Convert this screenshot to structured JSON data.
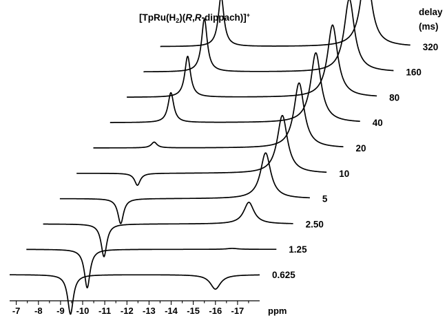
{
  "chart_data": {
    "type": "line",
    "title": "[TpRu(H2)(R,R-dippach)]+",
    "title_parts": {
      "pre": "[TpRu(H",
      "sub": "2",
      "mid": ")(",
      "italic": "R",
      "comma": ",",
      "italic2": "R",
      "post": "-dippach)]",
      "sup": "+"
    },
    "xlabel": "ppm",
    "x_reversed": true,
    "xlim": [
      -6.7,
      -18.0
    ],
    "xticks": [
      "-7",
      "-8",
      "-9",
      "-10",
      "-11",
      "-12",
      "-13",
      "-14",
      "-15",
      "-16",
      "-17"
    ],
    "legend_title": [
      "delay",
      "(ms)"
    ],
    "series": [
      {
        "name": "0.625",
        "delay_ms": 0.625,
        "peaks": [
          {
            "ppm": -9.45,
            "intensity": -0.82
          },
          {
            "ppm": -16.0,
            "intensity": -0.3
          }
        ]
      },
      {
        "name": "1.25",
        "delay_ms": 1.25,
        "peaks": [
          {
            "ppm": -9.45,
            "intensity": -0.8
          },
          {
            "ppm": -16.0,
            "intensity": 0.02
          }
        ]
      },
      {
        "name": "2.50",
        "delay_ms": 2.5,
        "peaks": [
          {
            "ppm": -9.45,
            "intensity": -0.68
          },
          {
            "ppm": -16.0,
            "intensity": 0.45
          }
        ]
      },
      {
        "name": "5",
        "delay_ms": 5,
        "peaks": [
          {
            "ppm": -9.45,
            "intensity": -0.52
          },
          {
            "ppm": -16.0,
            "intensity": 0.95
          }
        ]
      },
      {
        "name": "10",
        "delay_ms": 10,
        "peaks": [
          {
            "ppm": -9.45,
            "intensity": -0.25
          },
          {
            "ppm": -16.0,
            "intensity": 1.2
          }
        ]
      },
      {
        "name": "20",
        "delay_ms": 20,
        "peaks": [
          {
            "ppm": -9.45,
            "intensity": 0.12
          },
          {
            "ppm": -16.0,
            "intensity": 1.35
          }
        ]
      },
      {
        "name": "40",
        "delay_ms": 40,
        "peaks": [
          {
            "ppm": -9.45,
            "intensity": 0.62
          },
          {
            "ppm": -16.0,
            "intensity": 1.45
          }
        ]
      },
      {
        "name": "80",
        "delay_ms": 80,
        "peaks": [
          {
            "ppm": -9.45,
            "intensity": 0.85
          },
          {
            "ppm": -16.0,
            "intensity": 1.5
          }
        ]
      },
      {
        "name": "160",
        "delay_ms": 160,
        "peaks": [
          {
            "ppm": -9.45,
            "intensity": 1.1
          },
          {
            "ppm": -16.0,
            "intensity": 1.52
          }
        ]
      },
      {
        "name": "320",
        "delay_ms": 320,
        "peaks": [
          {
            "ppm": -9.45,
            "intensity": 1.05
          },
          {
            "ppm": -16.0,
            "intensity": 1.7
          }
        ]
      }
    ]
  }
}
